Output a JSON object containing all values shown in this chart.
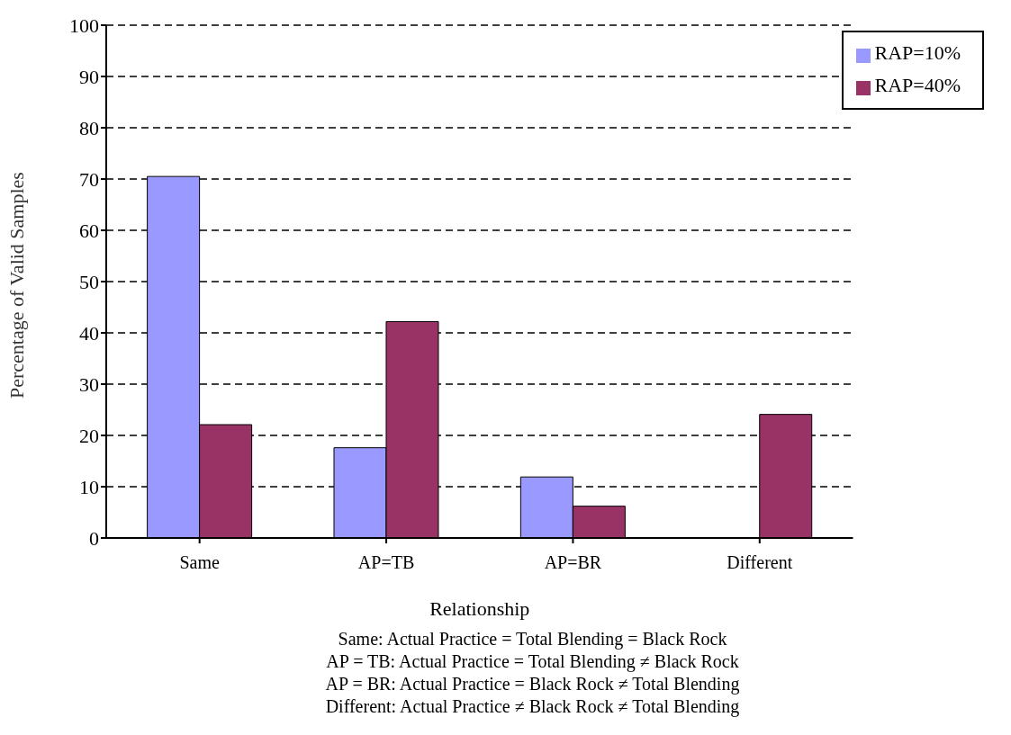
{
  "chart_data": {
    "type": "bar",
    "xlabel": "Relationship",
    "ylabel": "Percentage of Valid Samples",
    "categories": [
      "Same",
      "AP=TB",
      "AP=BR",
      "Different"
    ],
    "series": [
      {
        "name": "RAP=10%",
        "color": "#9999ff",
        "values": [
          70.5,
          17.6,
          11.9,
          0
        ]
      },
      {
        "name": "RAP=40%",
        "color": "#993366",
        "values": [
          22.1,
          42.2,
          6.2,
          24.1
        ]
      }
    ],
    "ylim": [
      0,
      100
    ],
    "yticks": [
      0,
      10,
      20,
      30,
      40,
      50,
      60,
      70,
      80,
      90,
      100
    ],
    "grid": "y",
    "legend": "top right",
    "annotations": [
      "Same: Actual Practice = Total Blending = Black Rock",
      "AP = TB: Actual Practice = Total Blending ≠ Black Rock",
      "AP = BR: Actual Practice = Black Rock ≠ Total Blending",
      "Different: Actual Practice ≠ Black Rock ≠ Total Blending"
    ]
  }
}
